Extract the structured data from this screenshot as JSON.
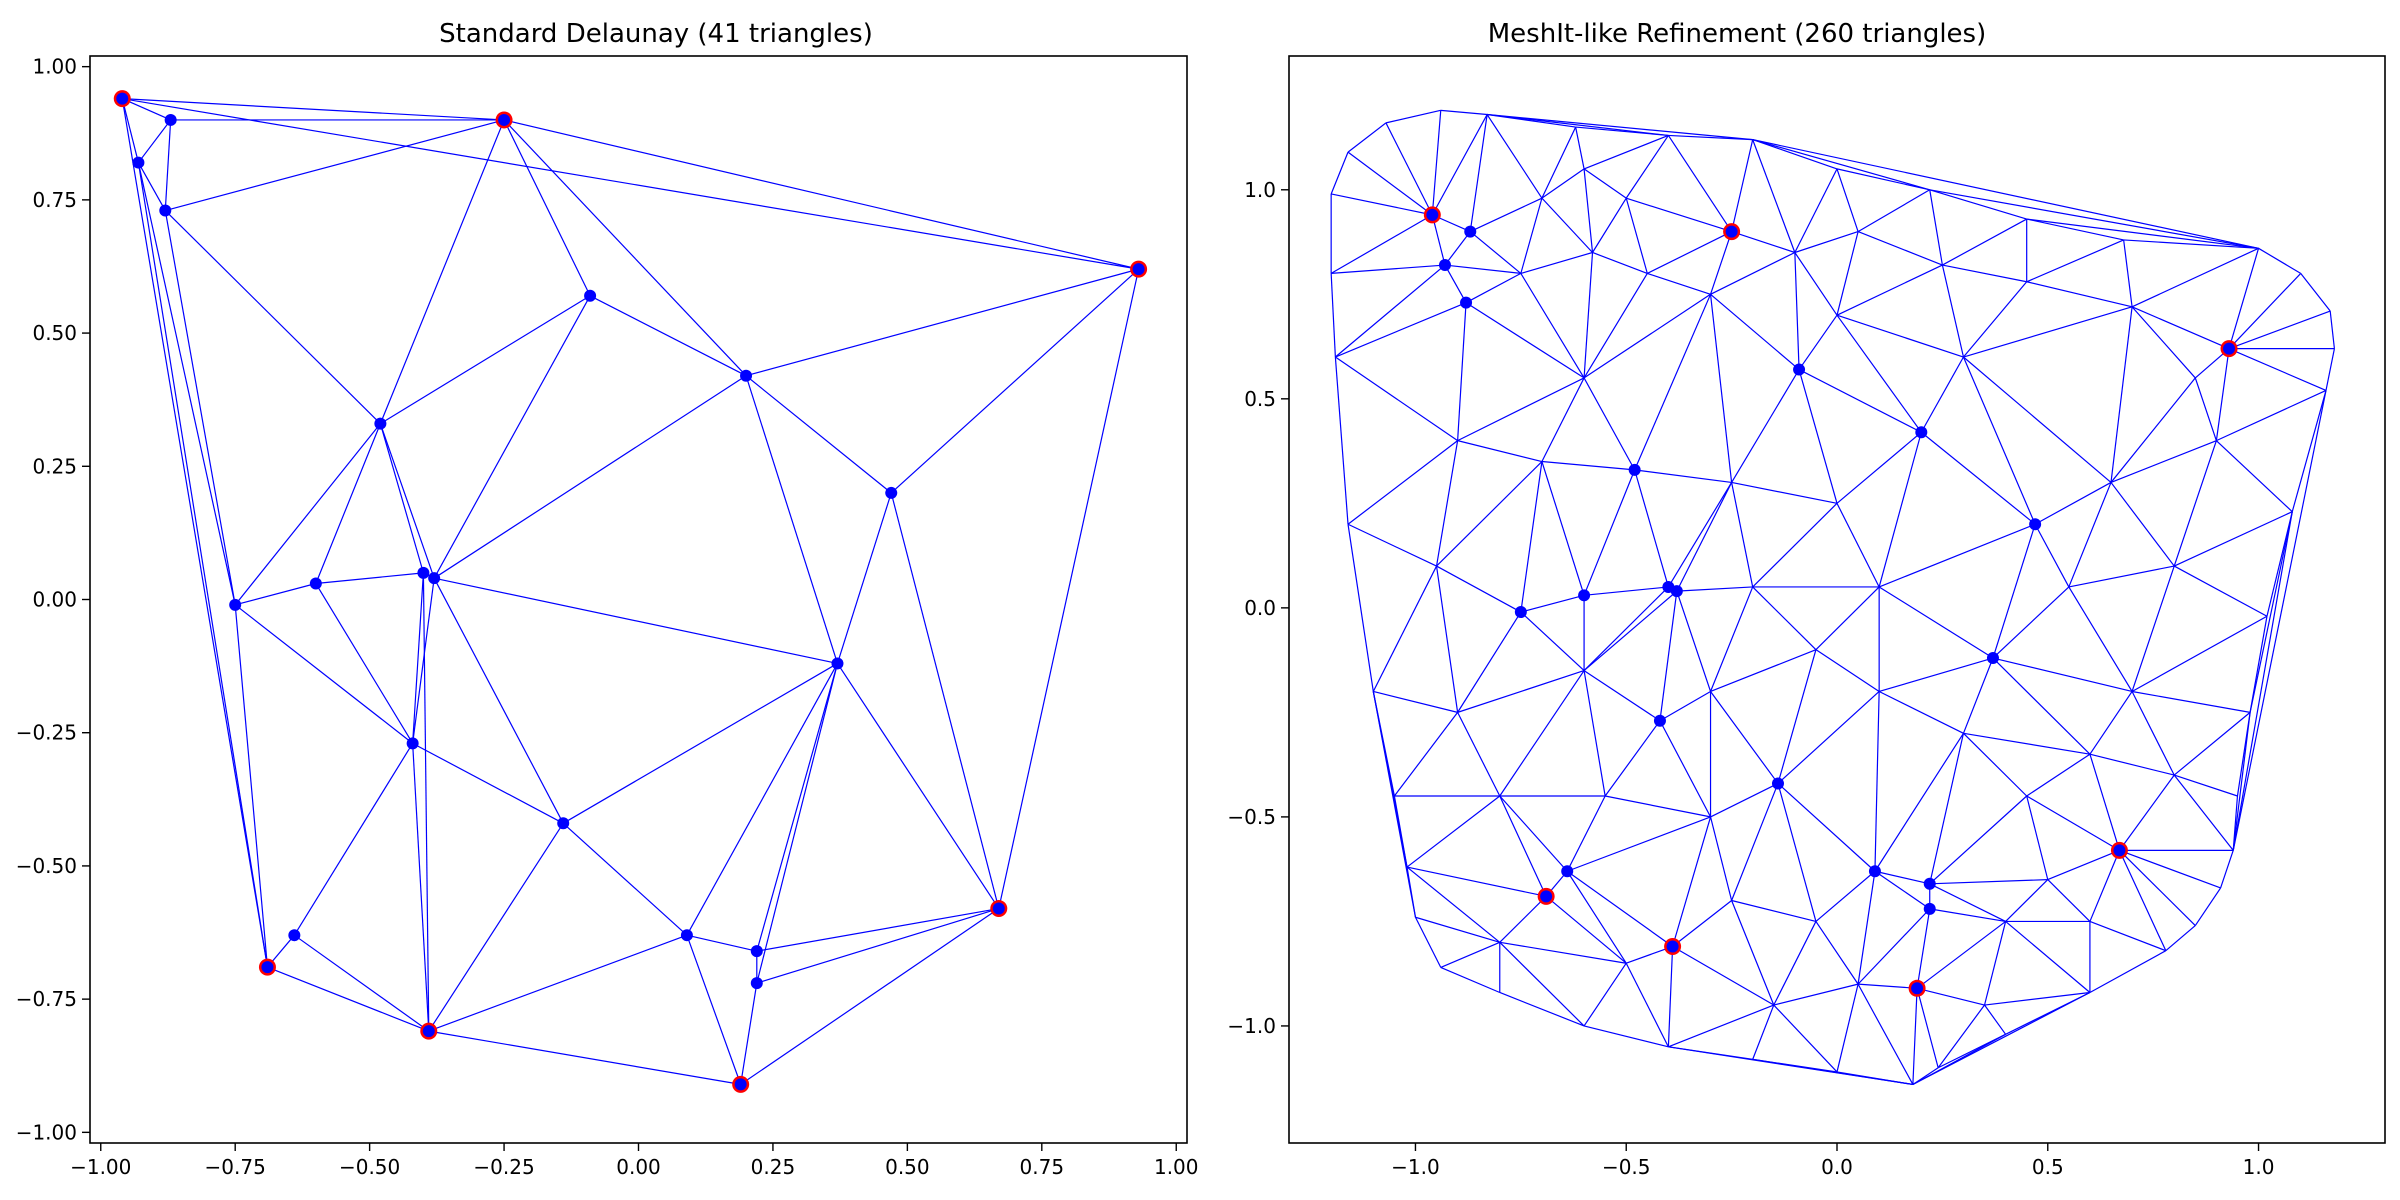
{
  "chart_data": [
    {
      "type": "scatter",
      "title": "Standard Delaunay (41 triangles)",
      "xlabel": "",
      "ylabel": "",
      "xlim": [
        -1.02,
        1.02
      ],
      "ylim": [
        -1.02,
        1.02
      ],
      "xticks": [
        -1.0,
        -0.75,
        -0.5,
        -0.25,
        0.0,
        0.25,
        0.5,
        0.75,
        1.0
      ],
      "xtick_labels": [
        "−1.00",
        "−0.75",
        "−0.50",
        "−0.25",
        "0.00",
        "0.25",
        "0.50",
        "0.75",
        "1.00"
      ],
      "yticks": [
        -1.0,
        -0.75,
        -0.5,
        -0.25,
        0.0,
        0.25,
        0.5,
        0.75,
        1.0
      ],
      "ytick_labels": [
        "−1.00",
        "−0.75",
        "−0.50",
        "−0.25",
        "0.00",
        "0.25",
        "0.50",
        "0.75",
        "1.00"
      ],
      "grid": false,
      "colors": {
        "edge": "#0000ff",
        "point": "#0000ff",
        "hull_point": "#ff0000"
      },
      "points": [
        [
          -0.96,
          0.94
        ],
        [
          -0.93,
          0.82
        ],
        [
          -0.87,
          0.9
        ],
        [
          -0.88,
          0.73
        ],
        [
          -0.25,
          0.9
        ],
        [
          0.93,
          0.62
        ],
        [
          -0.09,
          0.57
        ],
        [
          0.2,
          0.42
        ],
        [
          -0.48,
          0.33
        ],
        [
          0.47,
          0.2
        ],
        [
          -0.6,
          0.03
        ],
        [
          -0.4,
          0.05
        ],
        [
          -0.38,
          0.04
        ],
        [
          -0.75,
          -0.01
        ],
        [
          0.37,
          -0.12
        ],
        [
          -0.42,
          -0.27
        ],
        [
          -0.14,
          -0.42
        ],
        [
          0.67,
          -0.58
        ],
        [
          0.09,
          -0.63
        ],
        [
          -0.64,
          -0.63
        ],
        [
          0.22,
          -0.66
        ],
        [
          0.22,
          -0.72
        ],
        [
          -0.69,
          -0.69
        ],
        [
          -0.39,
          -0.81
        ],
        [
          0.19,
          -0.91
        ]
      ],
      "hull_points": [
        [
          -0.96,
          0.94
        ],
        [
          -0.25,
          0.9
        ],
        [
          0.93,
          0.62
        ],
        [
          0.67,
          -0.58
        ],
        [
          0.19,
          -0.91
        ],
        [
          -0.39,
          -0.81
        ],
        [
          -0.69,
          -0.69
        ]
      ],
      "edges": [
        [
          0,
          1
        ],
        [
          0,
          2
        ],
        [
          0,
          4
        ],
        [
          1,
          2
        ],
        [
          1,
          3
        ],
        [
          2,
          3
        ],
        [
          2,
          4
        ],
        [
          3,
          4
        ],
        [
          0,
          5
        ],
        [
          4,
          5
        ],
        [
          4,
          6
        ],
        [
          4,
          7
        ],
        [
          4,
          8
        ],
        [
          3,
          8
        ],
        [
          6,
          7
        ],
        [
          6,
          8
        ],
        [
          6,
          12
        ],
        [
          5,
          7
        ],
        [
          5,
          9
        ],
        [
          5,
          17
        ],
        [
          7,
          9
        ],
        [
          7,
          14
        ],
        [
          7,
          12
        ],
        [
          9,
          14
        ],
        [
          9,
          17
        ],
        [
          8,
          10
        ],
        [
          8,
          11
        ],
        [
          8,
          12
        ],
        [
          8,
          13
        ],
        [
          3,
          13
        ],
        [
          1,
          13
        ],
        [
          1,
          22
        ],
        [
          0,
          22
        ],
        [
          10,
          13
        ],
        [
          10,
          11
        ],
        [
          10,
          15
        ],
        [
          13,
          15
        ],
        [
          11,
          12
        ],
        [
          11,
          15
        ],
        [
          11,
          23
        ],
        [
          12,
          14
        ],
        [
          12,
          16
        ],
        [
          12,
          15
        ],
        [
          13,
          22
        ],
        [
          14,
          16
        ],
        [
          14,
          17
        ],
        [
          14,
          18
        ],
        [
          14,
          20
        ],
        [
          14,
          21
        ],
        [
          15,
          16
        ],
        [
          15,
          19
        ],
        [
          15,
          23
        ],
        [
          16,
          18
        ],
        [
          16,
          23
        ],
        [
          17,
          20
        ],
        [
          17,
          21
        ],
        [
          17,
          24
        ],
        [
          18,
          20
        ],
        [
          18,
          23
        ],
        [
          18,
          24
        ],
        [
          19,
          22
        ],
        [
          19,
          23
        ],
        [
          20,
          21
        ],
        [
          21,
          24
        ],
        [
          22,
          23
        ],
        [
          23,
          24
        ]
      ]
    },
    {
      "type": "scatter",
      "title": "MeshIt-like Refinement (260 triangles)",
      "xlabel": "",
      "ylabel": "",
      "xlim": [
        -1.3,
        1.3
      ],
      "ylim": [
        -1.28,
        1.32
      ],
      "xticks": [
        -1.0,
        -0.5,
        0.0,
        0.5,
        1.0
      ],
      "xtick_labels": [
        "−1.0",
        "−0.5",
        "0.0",
        "0.5",
        "1.0"
      ],
      "yticks": [
        -1.0,
        -0.5,
        0.0,
        0.5,
        1.0
      ],
      "ytick_labels": [
        "−1.0",
        "−0.5",
        "0.0",
        "0.5",
        "1.0"
      ],
      "grid": false,
      "colors": {
        "edge": "#0000ff",
        "point": "#0000ff",
        "hull_point": "#ff0000"
      },
      "points": [
        [
          -0.96,
          0.94
        ],
        [
          -0.93,
          0.82
        ],
        [
          -0.87,
          0.9
        ],
        [
          -0.88,
          0.73
        ],
        [
          -0.25,
          0.9
        ],
        [
          0.93,
          0.62
        ],
        [
          -0.09,
          0.57
        ],
        [
          0.2,
          0.42
        ],
        [
          -0.48,
          0.33
        ],
        [
          0.47,
          0.2
        ],
        [
          -0.6,
          0.03
        ],
        [
          -0.4,
          0.05
        ],
        [
          -0.38,
          0.04
        ],
        [
          -0.75,
          -0.01
        ],
        [
          0.37,
          -0.12
        ],
        [
          -0.42,
          -0.27
        ],
        [
          -0.14,
          -0.42
        ],
        [
          0.67,
          -0.58
        ],
        [
          0.09,
          -0.63
        ],
        [
          -0.64,
          -0.63
        ],
        [
          0.22,
          -0.66
        ],
        [
          0.22,
          -0.72
        ],
        [
          -0.69,
          -0.69
        ],
        [
          -0.39,
          -0.81
        ],
        [
          0.19,
          -0.91
        ]
      ],
      "hull_points": [
        [
          -0.96,
          0.94
        ],
        [
          -0.25,
          0.9
        ],
        [
          0.93,
          0.62
        ],
        [
          0.67,
          -0.58
        ],
        [
          0.19,
          -0.91
        ],
        [
          -0.39,
          -0.81
        ],
        [
          -0.69,
          -0.69
        ]
      ],
      "boundary": [
        [
          -0.94,
          1.19
        ],
        [
          -0.83,
          1.18
        ],
        [
          -0.62,
          1.15
        ],
        [
          -0.4,
          1.13
        ],
        [
          -0.2,
          1.12
        ],
        [
          0.0,
          1.05
        ],
        [
          0.22,
          1.0
        ],
        [
          0.45,
          0.93
        ],
        [
          0.68,
          0.88
        ],
        [
          1.0,
          0.86
        ],
        [
          1.1,
          0.8
        ],
        [
          1.17,
          0.71
        ],
        [
          1.18,
          0.62
        ],
        [
          1.16,
          0.52
        ],
        [
          1.08,
          0.23
        ],
        [
          1.02,
          -0.02
        ],
        [
          0.98,
          -0.25
        ],
        [
          0.95,
          -0.45
        ],
        [
          0.94,
          -0.58
        ],
        [
          0.91,
          -0.67
        ],
        [
          0.85,
          -0.76
        ],
        [
          0.78,
          -0.82
        ],
        [
          0.6,
          -0.92
        ],
        [
          0.4,
          -1.02
        ],
        [
          0.24,
          -1.1
        ],
        [
          0.18,
          -1.14
        ],
        [
          0.0,
          -1.11
        ],
        [
          -0.2,
          -1.08
        ],
        [
          -0.4,
          -1.05
        ],
        [
          -0.6,
          -1.0
        ],
        [
          -0.8,
          -0.92
        ],
        [
          -0.94,
          -0.86
        ],
        [
          -1.0,
          -0.74
        ],
        [
          -1.02,
          -0.62
        ],
        [
          -1.05,
          -0.45
        ],
        [
          -1.1,
          -0.2
        ],
        [
          -1.16,
          0.2
        ],
        [
          -1.19,
          0.6
        ],
        [
          -1.2,
          0.8
        ],
        [
          -1.2,
          0.99
        ],
        [
          -1.16,
          1.09
        ],
        [
          -1.07,
          1.16
        ]
      ],
      "interior": [
        [
          -0.7,
          0.98
        ],
        [
          -0.6,
          1.05
        ],
        [
          -0.5,
          0.98
        ],
        [
          -0.75,
          0.8
        ],
        [
          -0.58,
          0.85
        ],
        [
          -0.45,
          0.8
        ],
        [
          -0.3,
          0.75
        ],
        [
          -0.1,
          0.85
        ],
        [
          0.05,
          0.9
        ],
        [
          0.25,
          0.82
        ],
        [
          0.45,
          0.78
        ],
        [
          0.7,
          0.72
        ],
        [
          0.85,
          0.55
        ],
        [
          0.9,
          0.4
        ],
        [
          0.8,
          0.1
        ],
        [
          0.65,
          0.3
        ],
        [
          0.7,
          -0.2
        ],
        [
          0.8,
          -0.4
        ],
        [
          0.6,
          -0.35
        ],
        [
          0.45,
          -0.45
        ],
        [
          0.3,
          -0.3
        ],
        [
          0.1,
          -0.2
        ],
        [
          -0.05,
          -0.1
        ],
        [
          -0.2,
          0.05
        ],
        [
          -0.25,
          0.3
        ],
        [
          0.0,
          0.25
        ],
        [
          0.1,
          0.05
        ],
        [
          -0.6,
          0.55
        ],
        [
          -0.7,
          0.35
        ],
        [
          -0.9,
          0.4
        ],
        [
          -0.95,
          0.1
        ],
        [
          -0.9,
          -0.25
        ],
        [
          -0.8,
          -0.45
        ],
        [
          -0.55,
          -0.45
        ],
        [
          -0.3,
          -0.5
        ],
        [
          -0.25,
          -0.7
        ],
        [
          -0.05,
          -0.75
        ],
        [
          0.05,
          -0.9
        ],
        [
          -0.15,
          -0.95
        ],
        [
          -0.5,
          -0.85
        ],
        [
          -0.8,
          -0.8
        ],
        [
          0.4,
          -0.75
        ],
        [
          0.5,
          -0.65
        ],
        [
          0.35,
          -0.95
        ],
        [
          0.6,
          -0.75
        ],
        [
          -0.6,
          -0.15
        ],
        [
          -0.3,
          -0.2
        ],
        [
          0.55,
          0.05
        ],
        [
          0.3,
          0.6
        ],
        [
          0.0,
          0.7
        ]
      ]
    }
  ]
}
